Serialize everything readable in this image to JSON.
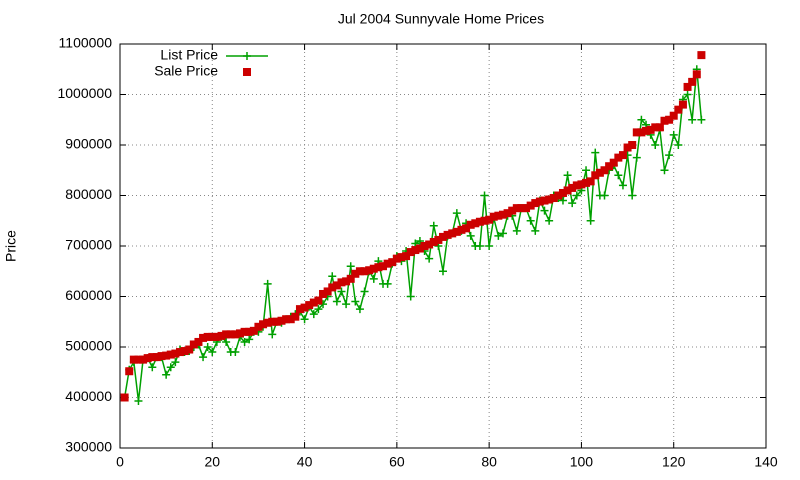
{
  "chart_data": {
    "type": "line",
    "title": "Jul 2004 Sunnyvale Home Prices",
    "y_label": "Price",
    "x": [
      1,
      2,
      3,
      4,
      5,
      6,
      7,
      8,
      9,
      10,
      11,
      12,
      13,
      14,
      15,
      16,
      17,
      18,
      19,
      20,
      21,
      22,
      23,
      24,
      25,
      26,
      27,
      28,
      29,
      30,
      31,
      32,
      33,
      34,
      35,
      36,
      37,
      38,
      39,
      40,
      41,
      42,
      43,
      44,
      45,
      46,
      47,
      48,
      49,
      50,
      51,
      52,
      53,
      54,
      55,
      56,
      57,
      58,
      59,
      60,
      61,
      62,
      63,
      64,
      65,
      66,
      67,
      68,
      69,
      70,
      71,
      72,
      73,
      74,
      75,
      76,
      77,
      78,
      79,
      80,
      81,
      82,
      83,
      84,
      85,
      86,
      87,
      88,
      89,
      90,
      91,
      92,
      93,
      94,
      95,
      96,
      97,
      98,
      99,
      100,
      101,
      102,
      103,
      104,
      105,
      106,
      107,
      108,
      109,
      110,
      111,
      112,
      113,
      114,
      115,
      116,
      117,
      118,
      119,
      120,
      121,
      122,
      123,
      124,
      125,
      126
    ],
    "series": [
      {
        "name": "List Price",
        "color": "#00a000",
        "style": "linespoints",
        "values": [
          400000,
          455000,
          470000,
          393000,
          475000,
          478000,
          460000,
          480000,
          480000,
          445000,
          460000,
          470000,
          495000,
          490000,
          492000,
          500000,
          505000,
          480000,
          500000,
          490000,
          510000,
          520000,
          510000,
          490000,
          490000,
          520000,
          510000,
          515000,
          530000,
          530000,
          540000,
          625000,
          525000,
          550000,
          548000,
          555000,
          560000,
          565000,
          570000,
          555000,
          580000,
          565000,
          575000,
          585000,
          600000,
          640000,
          590000,
          610000,
          585000,
          660000,
          590000,
          575000,
          610000,
          650000,
          635000,
          670000,
          625000,
          625000,
          665000,
          680000,
          670000,
          690000,
          600000,
          705000,
          710000,
          690000,
          675000,
          740000,
          700000,
          650000,
          720000,
          725000,
          765000,
          730000,
          745000,
          720000,
          700000,
          700000,
          800000,
          700000,
          755000,
          720000,
          725000,
          760000,
          760000,
          730000,
          775000,
          775000,
          750000,
          730000,
          790000,
          770000,
          750000,
          800000,
          795000,
          790000,
          840000,
          785000,
          800000,
          810000,
          850000,
          750000,
          885000,
          800000,
          800000,
          850000,
          860000,
          840000,
          820000,
          880000,
          800000,
          875000,
          950000,
          940000,
          920000,
          900000,
          930000,
          850000,
          880000,
          920000,
          900000,
          990000,
          1000000,
          950000,
          1050000,
          950000
        ]
      },
      {
        "name": "Sale Price",
        "color": "#cc0000",
        "style": "points",
        "values": [
          400000,
          452000,
          475000,
          475000,
          475000,
          478000,
          480000,
          480000,
          482000,
          483000,
          485000,
          487000,
          490000,
          492000,
          495000,
          505000,
          510000,
          518000,
          520000,
          520000,
          520000,
          522000,
          525000,
          525000,
          525000,
          527000,
          530000,
          530000,
          532000,
          540000,
          545000,
          548000,
          550000,
          550000,
          552000,
          555000,
          555000,
          560000,
          575000,
          578000,
          583000,
          588000,
          592000,
          605000,
          610000,
          618000,
          622000,
          628000,
          630000,
          635000,
          645000,
          650000,
          650000,
          652000,
          655000,
          658000,
          660000,
          665000,
          668000,
          675000,
          678000,
          680000,
          688000,
          692000,
          695000,
          700000,
          703000,
          708000,
          712000,
          718000,
          722000,
          725000,
          728000,
          732000,
          735000,
          742000,
          745000,
          748000,
          750000,
          752000,
          758000,
          760000,
          762000,
          765000,
          770000,
          775000,
          775000,
          775000,
          780000,
          785000,
          788000,
          790000,
          792000,
          795000,
          800000,
          805000,
          810000,
          815000,
          820000,
          822000,
          825000,
          828000,
          840000,
          845000,
          850000,
          858000,
          865000,
          875000,
          880000,
          895000,
          900000,
          925000,
          925000,
          928000,
          930000,
          935000,
          935000,
          948000,
          950000,
          958000,
          970000,
          980000,
          1015000,
          1025000,
          1040000,
          1078000
        ]
      }
    ],
    "xlim": [
      0,
      140
    ],
    "xticks": [
      0,
      20,
      40,
      60,
      80,
      100,
      120,
      140
    ],
    "ylim": [
      300000,
      1100000
    ],
    "yticks": [
      300000,
      400000,
      500000,
      600000,
      700000,
      800000,
      900000,
      1000000,
      1100000
    ],
    "grid": true,
    "legend": "top-left"
  }
}
